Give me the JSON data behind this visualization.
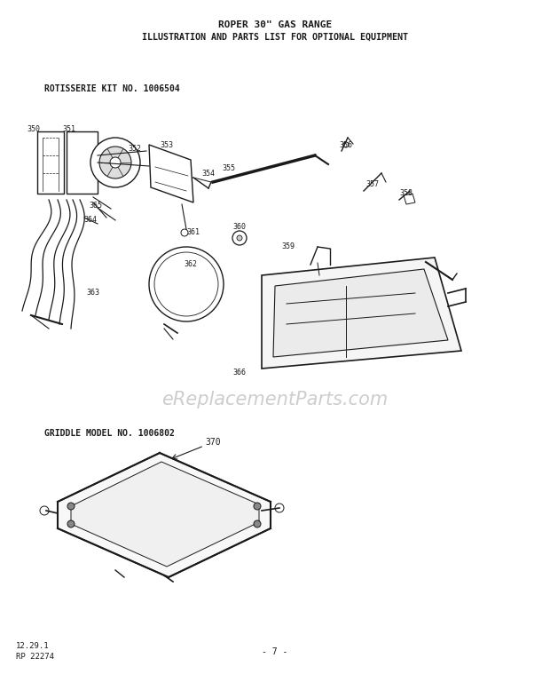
{
  "title_line1": "ROPER 30\" GAS RANGE",
  "title_line2": "ILLUSTRATION AND PARTS LIST FOR OPTIONAL EQUIPMENT",
  "section1_label": "ROTISSERIE KIT NO. 1006504",
  "section2_label": "GRIDDLE MODEL NO. 1006802",
  "footer_left1": "12.29.1",
  "footer_left2": "RP 22274",
  "footer_center": "- 7 -",
  "watermark": "eReplacementParts.com",
  "bg_color": "#ffffff",
  "text_color": "#1a1a1a",
  "diagram_color": "#1a1a1a"
}
